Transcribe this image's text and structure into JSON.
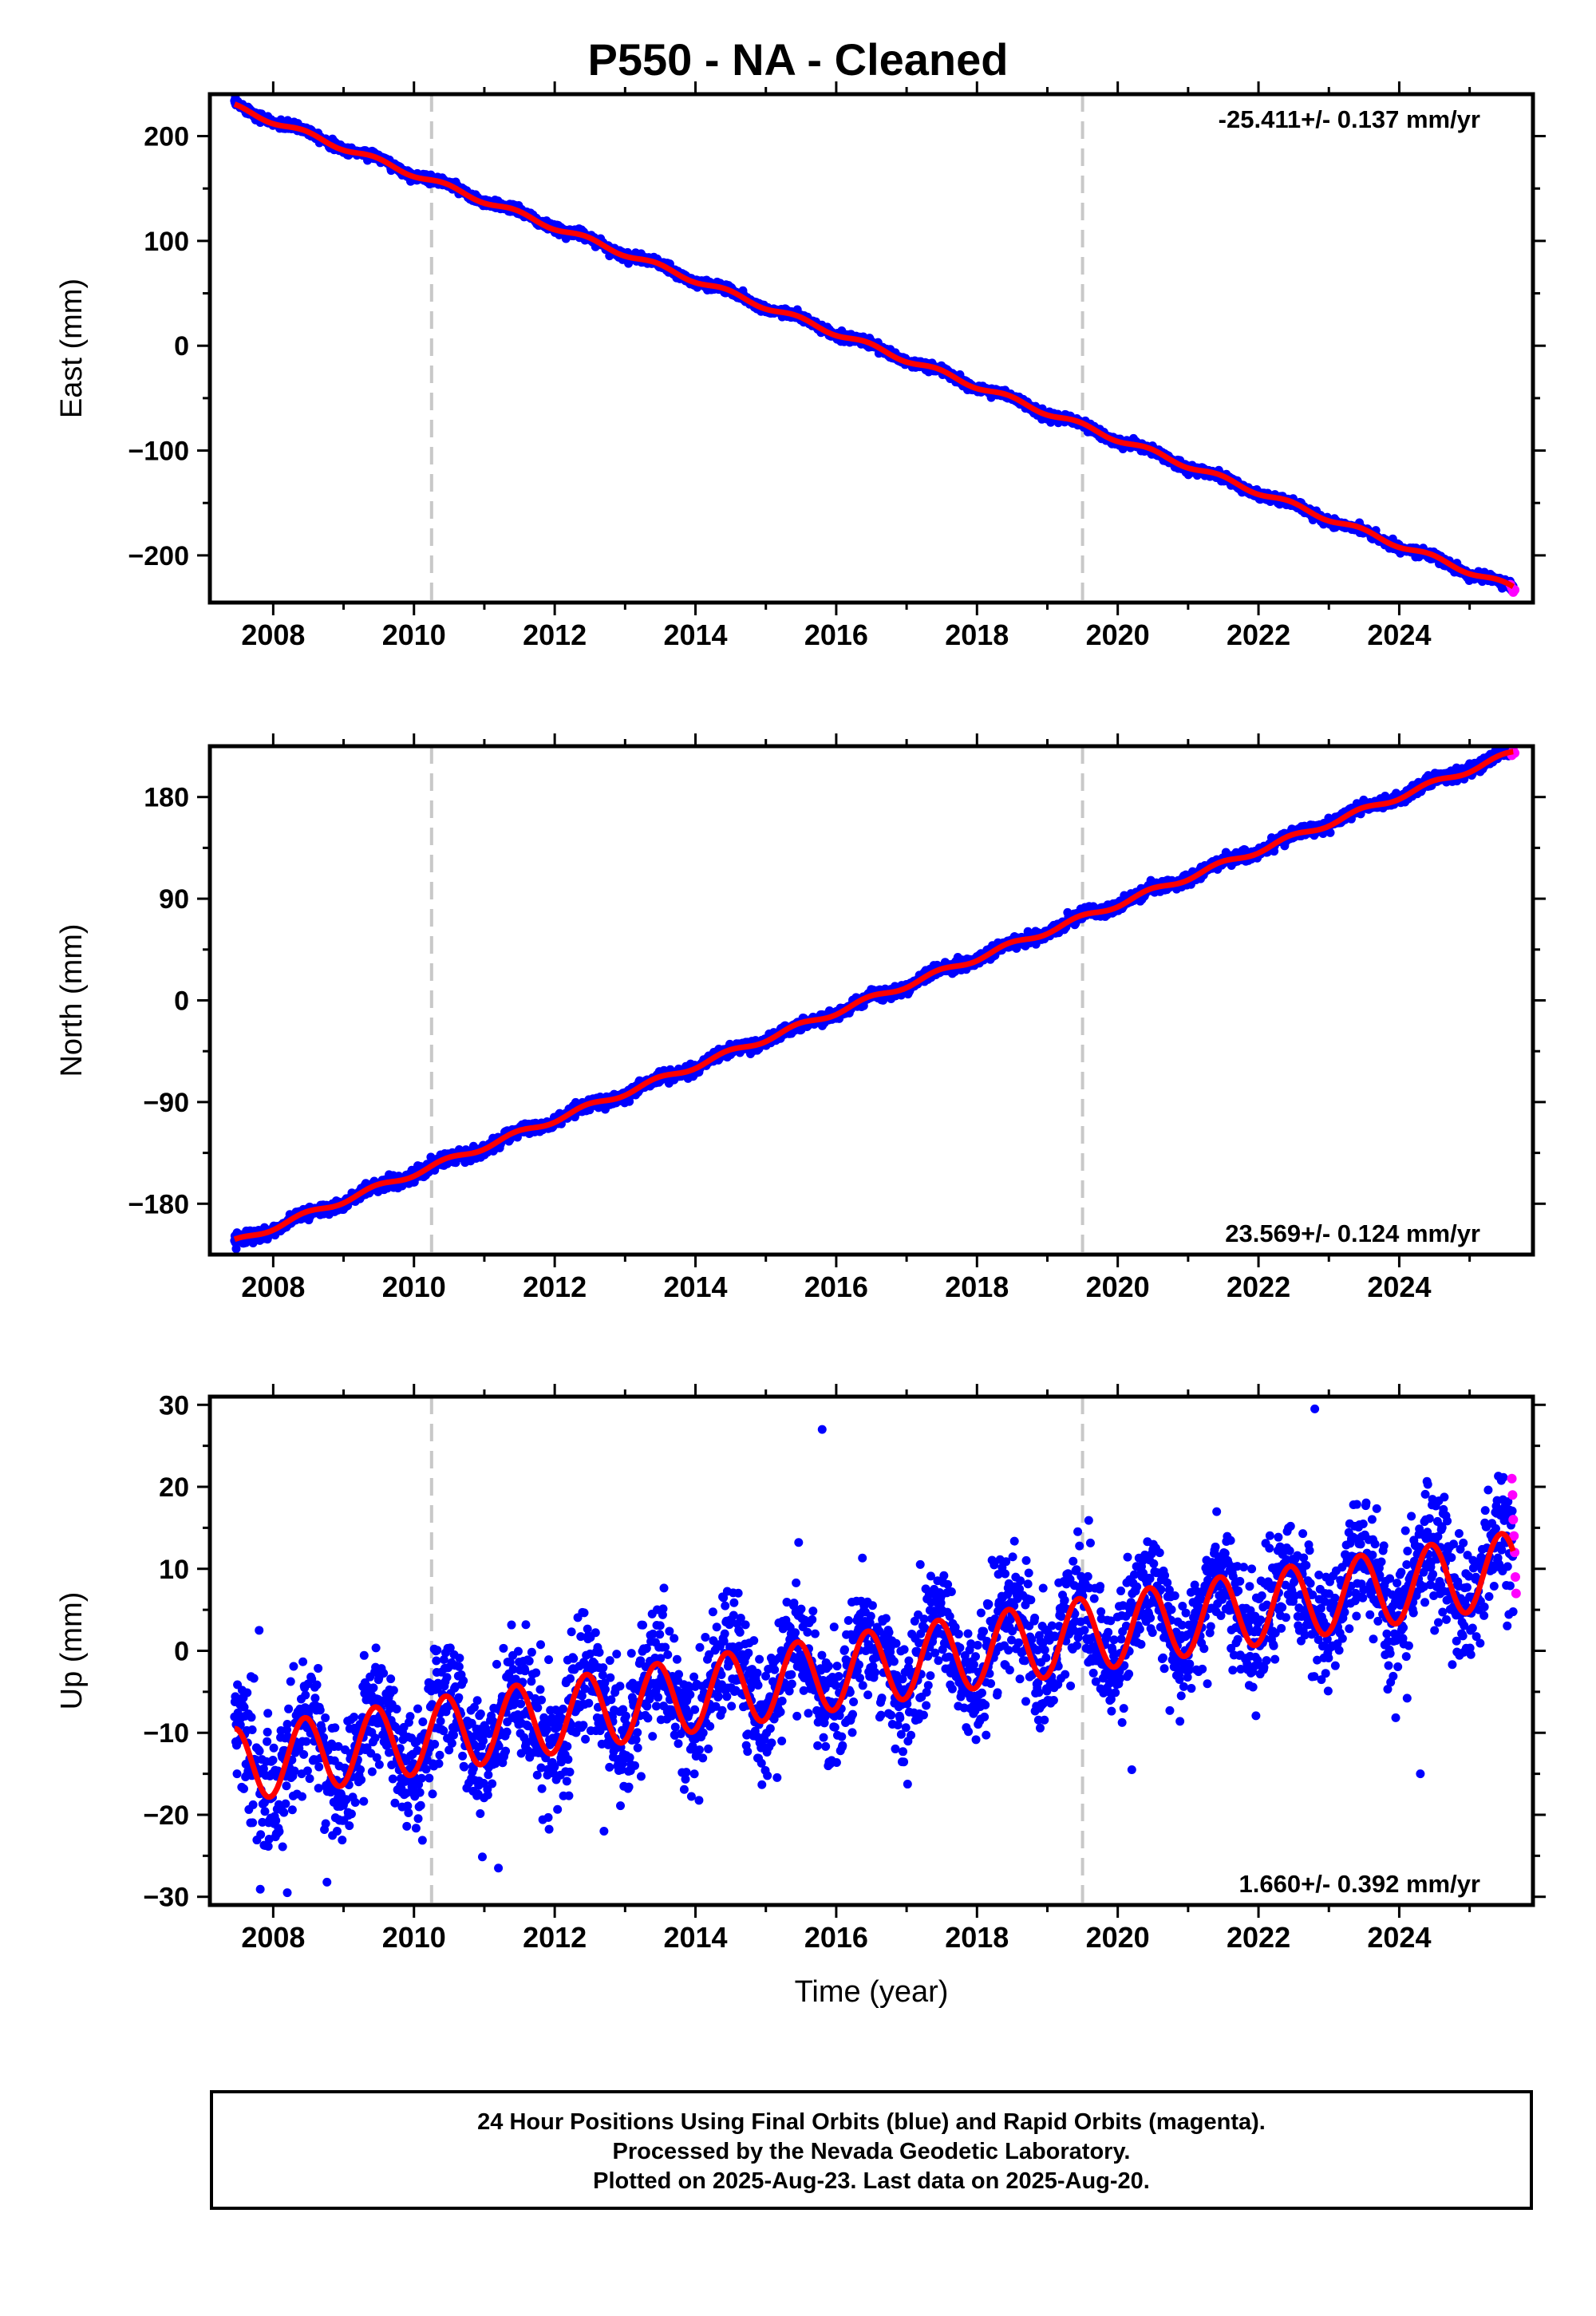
{
  "title": "P550  - NA - Cleaned",
  "chart_data": [
    {
      "type": "scatter",
      "id": "east",
      "ylabel": "East (mm)",
      "xlabel": "",
      "xlim": [
        2007.1,
        2025.9
      ],
      "ylim": [
        -245,
        240
      ],
      "yticks": [
        -200,
        -100,
        0,
        100,
        200
      ],
      "yticklabels": [
        "−200",
        "−100",
        "0",
        "100",
        "200"
      ],
      "xticks": [
        2008,
        2010,
        2012,
        2014,
        2016,
        2018,
        2020,
        2022,
        2024
      ],
      "xticklabels": [
        "2008",
        "2010",
        "2012",
        "2014",
        "2016",
        "2018",
        "2020",
        "2022",
        "2024"
      ],
      "rate_label": "-25.411+/- 0.137 mm/yr",
      "rate_position": "top-right",
      "vlines": [
        2010.25,
        2019.5
      ],
      "series": [
        {
          "color": "#0000ff",
          "x_start": 2007.45,
          "x_end": 2025.62,
          "y_start": 229,
          "y_end": -232,
          "annual_amp": 2.5,
          "noise": 2.0
        },
        {
          "color": "#ff00ff",
          "x": [
            2025.58,
            2025.6,
            2025.62,
            2025.64
          ],
          "y": [
            -228,
            -231,
            -235,
            -233
          ]
        },
        {
          "color": "#ff0000",
          "x_start": 2007.45,
          "x_end": 2025.62,
          "y_start": 228,
          "y_end": -231,
          "annual_amp": 2.5
        }
      ],
      "grid": false
    },
    {
      "type": "scatter",
      "id": "north",
      "ylabel": "North (mm)",
      "xlabel": "",
      "xlim": [
        2007.1,
        2025.9
      ],
      "ylim": [
        -225,
        225
      ],
      "yticks": [
        -180,
        -90,
        0,
        90,
        180
      ],
      "yticklabels": [
        "−180",
        "−90",
        "0",
        "90",
        "180"
      ],
      "xticks": [
        2008,
        2010,
        2012,
        2014,
        2016,
        2018,
        2020,
        2022,
        2024
      ],
      "xticklabels": [
        "2008",
        "2010",
        "2012",
        "2014",
        "2016",
        "2018",
        "2020",
        "2022",
        "2024"
      ],
      "rate_label": "23.569+/- 0.124 mm/yr",
      "rate_position": "bottom-right",
      "vlines": [
        2010.25,
        2019.5
      ],
      "series": [
        {
          "color": "#0000ff",
          "x_start": 2007.45,
          "x_end": 2025.62,
          "y_start": -215,
          "y_end": 220,
          "annual_amp": 2.5,
          "noise": 2.5
        },
        {
          "color": "#ff00ff",
          "x": [
            2025.6,
            2025.62,
            2025.64
          ],
          "y": [
            217,
            221,
            219
          ]
        },
        {
          "color": "#ff0000",
          "x_start": 2007.45,
          "x_end": 2025.62,
          "y_start": -214,
          "y_end": 219,
          "annual_amp": 2.5
        }
      ],
      "grid": false
    },
    {
      "type": "scatter",
      "id": "up",
      "ylabel": "Up (mm)",
      "xlabel": "Time (year)",
      "xlim": [
        2007.1,
        2025.9
      ],
      "ylim": [
        -31,
        31
      ],
      "yticks": [
        -30,
        -20,
        -10,
        0,
        10,
        20,
        30
      ],
      "yticklabels": [
        "−30",
        "−20",
        "−10",
        "0",
        "10",
        "20",
        "30"
      ],
      "xticks": [
        2008,
        2010,
        2012,
        2014,
        2016,
        2018,
        2020,
        2022,
        2024
      ],
      "xticklabels": [
        "2008",
        "2010",
        "2012",
        "2014",
        "2016",
        "2018",
        "2020",
        "2022",
        "2024"
      ],
      "rate_label": "1.660+/- 0.392 mm/yr",
      "rate_position": "bottom-right",
      "vlines": [
        2010.25,
        2019.5
      ],
      "series": [
        {
          "color": "#0000ff",
          "x_start": 2007.45,
          "x_end": 2025.62,
          "y_start": -14,
          "y_end": 10,
          "annual_amp": 4.5,
          "noise": 3.8
        },
        {
          "color": "#ff00ff",
          "x": [
            2025.6,
            2025.61,
            2025.62,
            2025.63,
            2025.64,
            2025.65,
            2025.66
          ],
          "y": [
            21,
            19,
            16,
            14,
            12,
            9,
            7
          ]
        },
        {
          "color": "#ff0000",
          "x_start": 2007.45,
          "x_end": 2025.62,
          "y_start": -14,
          "y_end": 10,
          "annual_amp": 4.5
        }
      ],
      "outliers": [
        {
          "x": 2015.8,
          "y": 27
        },
        {
          "x": 2022.8,
          "y": 29.5
        },
        {
          "x": 2008.2,
          "y": -29.5
        },
        {
          "x": 2011.2,
          "y": -26.5
        },
        {
          "x": 2007.8,
          "y": 2.5
        },
        {
          "x": 2024.3,
          "y": -15
        },
        {
          "x": 2020.2,
          "y": -14.5
        },
        {
          "x": 2012.7,
          "y": -22
        }
      ],
      "grid": false
    }
  ],
  "footer": {
    "line1": "24 Hour Positions Using Final Orbits (blue) and Rapid Orbits (magenta).",
    "line2": "Processed by the Nevada Geodetic Laboratory.",
    "line3": "Plotted on 2025-Aug-23. Last data on 2025-Aug-20."
  }
}
